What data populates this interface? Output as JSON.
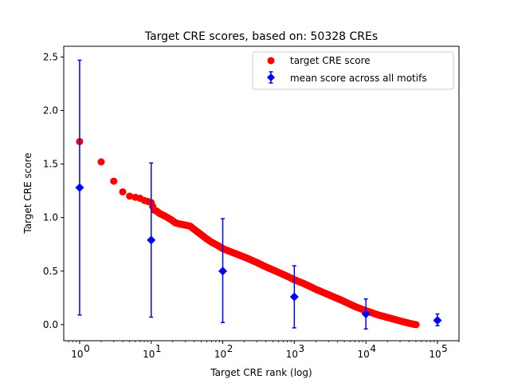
{
  "chart_data": {
    "type": "scatter",
    "title": "Target CRE scores, based on: 50328 CREs",
    "xlabel": "Target CRE rank (log)",
    "ylabel": "Target CRE score",
    "xscale": "log",
    "xlim": [
      0.6,
      200000
    ],
    "ylim": [
      -0.15,
      2.6
    ],
    "xticks": [
      1,
      10,
      100,
      1000,
      10000,
      100000
    ],
    "xtick_labels": [
      "10",
      "10",
      "10",
      "10",
      "10",
      "10"
    ],
    "xtick_exponents": [
      "0",
      "1",
      "2",
      "3",
      "4",
      "5"
    ],
    "yticks": [
      0.0,
      0.5,
      1.0,
      1.5,
      2.0,
      2.5
    ],
    "ytick_labels": [
      "0.0",
      "0.5",
      "1.0",
      "1.5",
      "2.0",
      "2.5"
    ],
    "legend_position": "top-right",
    "grid": false,
    "series": [
      {
        "name": "target CRE score",
        "marker": "circle",
        "color": "#ff0000",
        "points": [
          [
            1,
            1.71
          ],
          [
            2,
            1.52
          ],
          [
            3,
            1.34
          ],
          [
            4,
            1.24
          ],
          [
            5,
            1.2
          ],
          [
            6,
            1.19
          ],
          [
            7,
            1.18
          ],
          [
            8,
            1.16
          ],
          [
            9,
            1.15
          ],
          [
            10,
            1.14
          ],
          [
            11,
            1.07
          ],
          [
            12,
            1.06
          ],
          [
            13,
            1.04
          ],
          [
            15,
            1.02
          ],
          [
            17,
            1.0
          ],
          [
            19,
            0.98
          ],
          [
            22,
            0.95
          ],
          [
            25,
            0.94
          ],
          [
            30,
            0.93
          ],
          [
            35,
            0.92
          ],
          [
            40,
            0.89
          ],
          [
            50,
            0.84
          ],
          [
            60,
            0.8
          ],
          [
            70,
            0.77
          ],
          [
            85,
            0.74
          ],
          [
            100,
            0.71
          ],
          [
            130,
            0.68
          ],
          [
            170,
            0.65
          ],
          [
            220,
            0.62
          ],
          [
            300,
            0.58
          ],
          [
            400,
            0.54
          ],
          [
            550,
            0.5
          ],
          [
            750,
            0.46
          ],
          [
            1000,
            0.42
          ],
          [
            1400,
            0.38
          ],
          [
            2000,
            0.33
          ],
          [
            3000,
            0.28
          ],
          [
            4500,
            0.23
          ],
          [
            7000,
            0.17
          ],
          [
            10000,
            0.13
          ],
          [
            15000,
            0.09
          ],
          [
            22000,
            0.06
          ],
          [
            32000,
            0.03
          ],
          [
            42000,
            0.01
          ],
          [
            50328,
            0.0
          ]
        ]
      },
      {
        "name": "mean score across all motifs",
        "marker": "diamond",
        "color": "#0000ff",
        "points": [
          {
            "x": 1,
            "y": 1.28,
            "low": 0.09,
            "high": 2.47
          },
          {
            "x": 10,
            "y": 0.79,
            "low": 0.07,
            "high": 1.51
          },
          {
            "x": 100,
            "y": 0.5,
            "low": 0.02,
            "high": 0.99
          },
          {
            "x": 1000,
            "y": 0.26,
            "low": -0.03,
            "high": 0.55
          },
          {
            "x": 10000,
            "y": 0.1,
            "low": -0.04,
            "high": 0.24
          },
          {
            "x": 100000,
            "y": 0.04,
            "low": -0.01,
            "high": 0.1
          }
        ]
      }
    ]
  }
}
